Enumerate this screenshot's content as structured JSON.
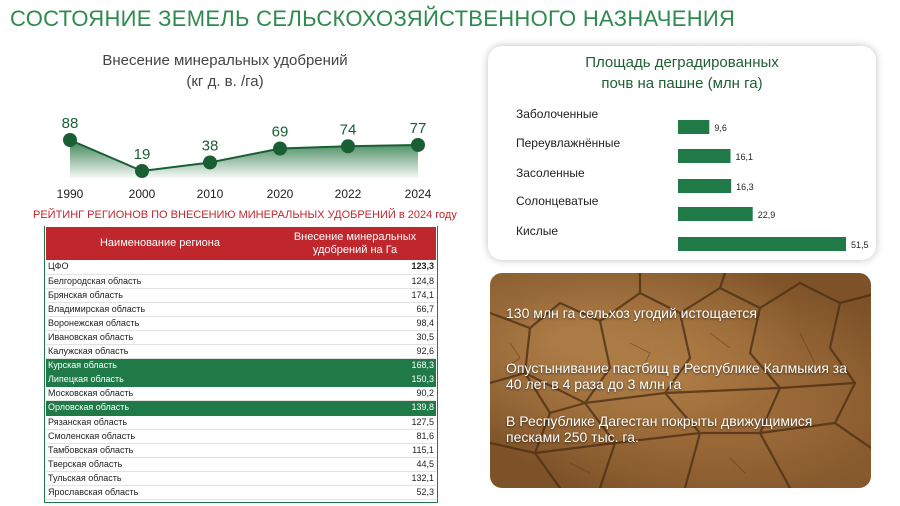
{
  "page_title": "СОСТОЯНИЕ  ЗЕМЕЛЬ СЕЛЬСКОХОЗЯЙСТВЕННОГО НАЗНАЧЕНИЯ",
  "colors": {
    "green": "#1f7a48",
    "red": "#c0272d",
    "title_green": "#2f8a4f"
  },
  "chart_data": [
    {
      "type": "area",
      "title_line1": "Внесение минеральных удобрений",
      "title_line2": "(кг д. в. /га)",
      "categories": [
        "1990",
        "2000",
        "2010",
        "2020",
        "2022",
        "2024"
      ],
      "values": [
        88,
        19,
        38,
        69,
        74,
        77
      ],
      "ylim": [
        0,
        100
      ]
    },
    {
      "type": "bar",
      "orientation": "horizontal",
      "title_line1": "Площадь деградированных",
      "title_line2": "почв на пашне (млн га)",
      "categories": [
        "Заболоченные",
        "Переувлажнённые",
        "Засоленные",
        "Солонцеватые",
        "Кислые"
      ],
      "values": [
        9.6,
        16.1,
        16.3,
        22.9,
        51.5
      ],
      "value_labels": [
        "9,6",
        "16,1",
        "16,3",
        "22,9",
        "51,5"
      ],
      "xlim": [
        0,
        51.5
      ]
    },
    {
      "type": "table",
      "title": "РЕЙТИНГ РЕГИОНОВ ПО ВНЕСЕНИЮ МИНЕРАЛЬНЫХ УДОБРЕНИЙ в 2024 году",
      "columns": [
        "Наименование  региона",
        "Внесение минеральных удобрений на Га"
      ],
      "rows": [
        {
          "name": "ЦФО",
          "value": "123,3",
          "highlight": false,
          "bold": true
        },
        {
          "name": "Белгородская область",
          "value": "124,8",
          "highlight": false,
          "bold": false
        },
        {
          "name": "Брянская область",
          "value": "174,1",
          "highlight": false,
          "bold": false
        },
        {
          "name": "Владимирская область",
          "value": "66,7",
          "highlight": false,
          "bold": false
        },
        {
          "name": "Воронежская область",
          "value": "98,4",
          "highlight": false,
          "bold": false
        },
        {
          "name": "Ивановская область",
          "value": "30,5",
          "highlight": false,
          "bold": false
        },
        {
          "name": "Калужская область",
          "value": "92,6",
          "highlight": false,
          "bold": false
        },
        {
          "name": "Курская область",
          "value": "168,3",
          "highlight": true,
          "bold": false
        },
        {
          "name": "Липецкая область",
          "value": "150,3",
          "highlight": true,
          "bold": false
        },
        {
          "name": "Московская область",
          "value": "90,2",
          "highlight": false,
          "bold": false
        },
        {
          "name": "Орловская область",
          "value": "139,8",
          "highlight": true,
          "bold": false
        },
        {
          "name": "Рязанская область",
          "value": "127,5",
          "highlight": false,
          "bold": false
        },
        {
          "name": "Смоленская область",
          "value": "81,6",
          "highlight": false,
          "bold": false
        },
        {
          "name": "Тамбовская область",
          "value": "115,1",
          "highlight": false,
          "bold": false
        },
        {
          "name": "Тверская область",
          "value": "44,5",
          "highlight": false,
          "bold": false
        },
        {
          "name": "Тульская область",
          "value": "132,1",
          "highlight": false,
          "bold": false
        },
        {
          "name": "Ярославская область",
          "value": "52,3",
          "highlight": false,
          "bold": false
        }
      ]
    }
  ],
  "facts": {
    "fact1": "130 млн га сельхоз угодий истощается",
    "fact2": "Опустынивание пастбищ в Республике Калмыкия за 40 лет в 4 раза до 3 млн га",
    "fact3": "В Республике Дагестан покрыты движущимися песками 250 тыс. га."
  }
}
